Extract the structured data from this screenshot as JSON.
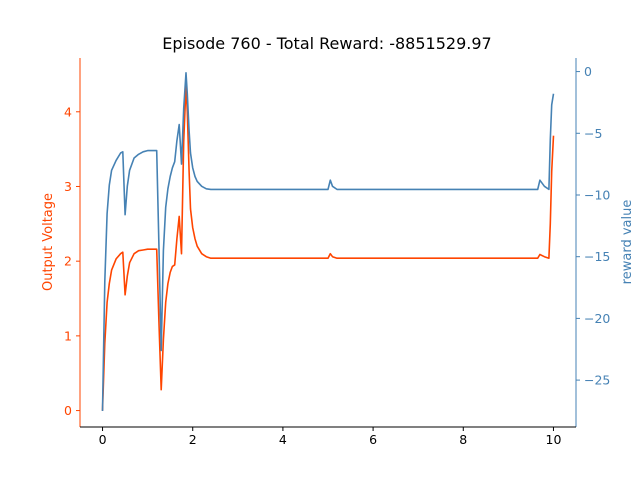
{
  "chart_data": {
    "type": "line",
    "title": "Episode 760 - Total Reward: -8851529.97",
    "xlabel": "",
    "ylabel_left": "Output Voltage",
    "ylabel_right": "reward value",
    "xlim": [
      -0.5,
      10.5
    ],
    "ylim_left": [
      -0.22,
      4.72
    ],
    "ylim_right": [
      -28.8,
      1.1
    ],
    "x_ticks": [
      "0",
      "2",
      "4",
      "6",
      "8",
      "10"
    ],
    "y_ticks_left": [
      "0",
      "1",
      "2",
      "3",
      "4"
    ],
    "y_ticks_right": [
      "0",
      "−5",
      "−10",
      "−15",
      "−20",
      "−25"
    ],
    "grid": false,
    "legend": "none",
    "colors": {
      "left": "#ff4500",
      "right": "#4682b4"
    },
    "series": [
      {
        "axis": "left",
        "x": [
          0,
          0.05,
          0.1,
          0.15,
          0.2,
          0.3,
          0.4,
          0.45,
          0.5,
          0.55,
          0.6,
          0.7,
          0.8,
          0.9,
          1.0,
          1.1,
          1.2,
          1.25,
          1.3,
          1.35,
          1.4,
          1.45,
          1.5,
          1.55,
          1.6,
          1.65,
          1.7,
          1.75,
          1.8,
          1.85,
          1.88,
          1.92,
          1.95,
          2.0,
          2.05,
          2.1,
          2.2,
          2.3,
          2.4,
          2.6,
          3.0,
          4.0,
          4.9,
          5.0,
          5.05,
          5.1,
          5.2,
          5.3,
          6.0,
          7.0,
          8.0,
          9.0,
          9.6,
          9.65,
          9.7,
          9.8,
          9.9,
          9.93,
          9.96,
          10.0
        ],
        "y": [
          0.0,
          0.9,
          1.45,
          1.7,
          1.88,
          2.03,
          2.1,
          2.12,
          1.55,
          1.8,
          1.98,
          2.1,
          2.14,
          2.15,
          2.16,
          2.16,
          2.16,
          1.2,
          0.28,
          0.95,
          1.45,
          1.7,
          1.85,
          1.93,
          1.95,
          2.3,
          2.6,
          2.1,
          3.6,
          4.35,
          4.0,
          3.2,
          2.7,
          2.45,
          2.3,
          2.2,
          2.1,
          2.06,
          2.04,
          2.04,
          2.04,
          2.04,
          2.04,
          2.04,
          2.1,
          2.06,
          2.04,
          2.04,
          2.04,
          2.04,
          2.04,
          2.04,
          2.04,
          2.04,
          2.09,
          2.06,
          2.04,
          2.5,
          3.2,
          3.68
        ]
      },
      {
        "axis": "right",
        "x": [
          0,
          0.05,
          0.1,
          0.15,
          0.2,
          0.3,
          0.4,
          0.45,
          0.5,
          0.55,
          0.6,
          0.7,
          0.8,
          0.9,
          1.0,
          1.1,
          1.2,
          1.25,
          1.3,
          1.35,
          1.4,
          1.45,
          1.5,
          1.55,
          1.6,
          1.65,
          1.7,
          1.75,
          1.8,
          1.85,
          1.88,
          1.92,
          1.95,
          2.0,
          2.05,
          2.1,
          2.2,
          2.3,
          2.4,
          2.6,
          3.0,
          4.0,
          4.9,
          5.0,
          5.05,
          5.1,
          5.2,
          5.3,
          6.0,
          7.0,
          8.0,
          9.0,
          9.6,
          9.65,
          9.7,
          9.8,
          9.9,
          9.93,
          9.96,
          10.0
        ],
        "y": [
          -27.5,
          -17.0,
          -11.5,
          -9.2,
          -8.0,
          -7.2,
          -6.6,
          -6.5,
          -11.6,
          -9.3,
          -8.0,
          -7.0,
          -6.7,
          -6.5,
          -6.4,
          -6.4,
          -6.4,
          -14.0,
          -22.6,
          -14.5,
          -11.0,
          -9.5,
          -8.5,
          -7.8,
          -7.3,
          -5.6,
          -4.3,
          -7.5,
          -3.0,
          -0.1,
          -1.8,
          -4.8,
          -6.6,
          -7.8,
          -8.5,
          -8.9,
          -9.3,
          -9.5,
          -9.55,
          -9.55,
          -9.55,
          -9.55,
          -9.55,
          -9.55,
          -8.8,
          -9.3,
          -9.55,
          -9.55,
          -9.55,
          -9.55,
          -9.55,
          -9.55,
          -9.55,
          -9.55,
          -8.8,
          -9.3,
          -9.55,
          -5.5,
          -2.7,
          -1.8
        ]
      }
    ]
  }
}
